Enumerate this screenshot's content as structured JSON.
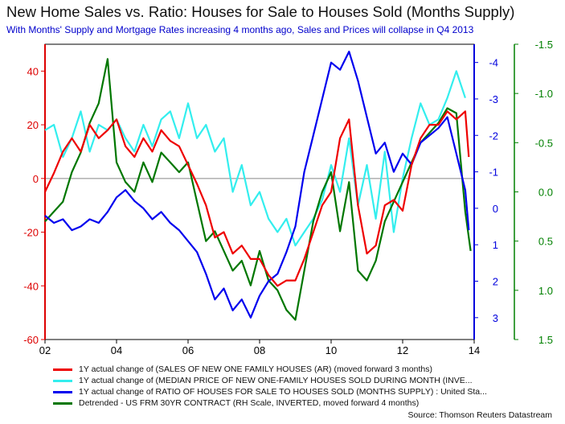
{
  "chart_data": {
    "type": "line",
    "title": "New Home Sales vs. Ratio: Houses for Sale to Houses Sold (Months Supply)",
    "subtitle": "With Months' Supply and Mortgage Rates increasing 4 months ago, Sales and Prices will collapse in Q4 2013",
    "source": "Source: Thomson Reuters Datastream",
    "x_range": [
      2002,
      2014
    ],
    "x_ticks": [
      "02",
      "04",
      "06",
      "08",
      "10",
      "12",
      "14"
    ],
    "x_tick_values": [
      2002,
      2004,
      2006,
      2008,
      2010,
      2012,
      2014
    ],
    "left_axis": {
      "range": [
        -60,
        50
      ],
      "ticks": [
        "40",
        "20",
        "0",
        "-20",
        "-40",
        "-60"
      ],
      "tick_values": [
        40,
        20,
        0,
        -20,
        -40,
        -60
      ],
      "color": "#dd0000"
    },
    "right_axis_1": {
      "range": [
        -4.5,
        3.6
      ],
      "inverted": true,
      "ticks": [
        "-4",
        "-3",
        "-2",
        "-1",
        "0",
        "1",
        "2",
        "3"
      ],
      "tick_values": [
        -4,
        -3,
        -2,
        -1,
        0,
        1,
        2,
        3
      ],
      "color": "#0000dd"
    },
    "right_axis_2": {
      "range": [
        -1.5,
        1.5
      ],
      "inverted": true,
      "ticks": [
        "-1.5",
        "-1.0",
        "-0.5",
        "0.0",
        "0.5",
        "1.0",
        "1.5"
      ],
      "tick_values": [
        -1.5,
        -1.0,
        -0.5,
        0.0,
        0.5,
        1.0,
        1.5
      ],
      "color": "#008000"
    },
    "zero_line": 0,
    "series": [
      {
        "name": "1Y actual change of (SALES OF NEW ONE FAMILY HOUSES (AR) (moved forward 3 months)",
        "color": "#ee0000",
        "axis": "left",
        "x": [
          2002.0,
          2002.25,
          2002.5,
          2002.75,
          2003.0,
          2003.25,
          2003.5,
          2003.75,
          2004.0,
          2004.25,
          2004.5,
          2004.75,
          2005.0,
          2005.25,
          2005.5,
          2005.75,
          2006.0,
          2006.25,
          2006.5,
          2006.75,
          2007.0,
          2007.25,
          2007.5,
          2007.75,
          2008.0,
          2008.25,
          2008.5,
          2008.75,
          2009.0,
          2009.25,
          2009.5,
          2009.75,
          2010.0,
          2010.25,
          2010.5,
          2010.75,
          2011.0,
          2011.25,
          2011.5,
          2011.75,
          2012.0,
          2012.25,
          2012.5,
          2012.75,
          2013.0,
          2013.25,
          2013.5,
          2013.75,
          2013.85
        ],
        "values": [
          -5,
          2,
          10,
          15,
          10,
          20,
          15,
          18,
          22,
          12,
          8,
          15,
          10,
          18,
          14,
          12,
          5,
          -2,
          -10,
          -22,
          -20,
          -28,
          -25,
          -30,
          -30,
          -36,
          -40,
          -38,
          -38,
          -30,
          -20,
          -10,
          -5,
          15,
          22,
          -10,
          -28,
          -25,
          -10,
          -8,
          -12,
          5,
          15,
          20,
          20,
          25,
          22,
          25,
          8
        ]
      },
      {
        "name": "1Y actual change of (MEDIAN PRICE OF NEW ONE-FAMILY HOUSES SOLD DURING MONTH (INVE...",
        "color": "#33eeee",
        "axis": "left",
        "x": [
          2002.0,
          2002.25,
          2002.5,
          2002.75,
          2003.0,
          2003.25,
          2003.5,
          2003.75,
          2004.0,
          2004.25,
          2004.5,
          2004.75,
          2005.0,
          2005.25,
          2005.5,
          2005.75,
          2006.0,
          2006.25,
          2006.5,
          2006.75,
          2007.0,
          2007.25,
          2007.5,
          2007.75,
          2008.0,
          2008.25,
          2008.5,
          2008.75,
          2009.0,
          2009.25,
          2009.5,
          2009.75,
          2010.0,
          2010.25,
          2010.5,
          2010.75,
          2011.0,
          2011.25,
          2011.5,
          2011.75,
          2012.0,
          2012.25,
          2012.5,
          2012.75,
          2013.0,
          2013.25,
          2013.5,
          2013.75
        ],
        "values": [
          18,
          20,
          8,
          15,
          25,
          10,
          20,
          18,
          22,
          15,
          10,
          20,
          12,
          22,
          25,
          15,
          28,
          15,
          20,
          10,
          15,
          -5,
          5,
          -10,
          -5,
          -15,
          -20,
          -15,
          -25,
          -20,
          -15,
          -8,
          5,
          -5,
          15,
          -10,
          5,
          -15,
          10,
          -20,
          0,
          15,
          28,
          20,
          22,
          30,
          40,
          30
        ]
      },
      {
        "name": "1Y actual change of RATIO OF HOUSES FOR SALE TO HOUSES SOLD (MONTHS SUPPLY) : United Sta...",
        "color": "#0000ee",
        "axis": "right_1",
        "x": [
          2002.0,
          2002.25,
          2002.5,
          2002.75,
          2003.0,
          2003.25,
          2003.5,
          2003.75,
          2004.0,
          2004.25,
          2004.5,
          2004.75,
          2005.0,
          2005.25,
          2005.5,
          2005.75,
          2006.0,
          2006.25,
          2006.5,
          2006.75,
          2007.0,
          2007.25,
          2007.5,
          2007.75,
          2008.0,
          2008.25,
          2008.5,
          2008.75,
          2009.0,
          2009.25,
          2009.5,
          2009.75,
          2010.0,
          2010.25,
          2010.5,
          2010.75,
          2011.0,
          2011.25,
          2011.5,
          2011.75,
          2012.0,
          2012.25,
          2012.5,
          2012.75,
          2013.0,
          2013.25,
          2013.5,
          2013.75,
          2013.85
        ],
        "values": [
          0.2,
          0.4,
          0.3,
          0.6,
          0.5,
          0.3,
          0.4,
          0.1,
          -0.3,
          -0.5,
          -0.2,
          0.0,
          0.3,
          0.1,
          0.4,
          0.6,
          0.9,
          1.2,
          1.8,
          2.5,
          2.2,
          2.8,
          2.5,
          3.0,
          2.4,
          2.0,
          1.8,
          1.2,
          0.5,
          -1.0,
          -2.0,
          -3.0,
          -4.0,
          -3.8,
          -4.3,
          -3.5,
          -2.5,
          -1.5,
          -1.8,
          -1.0,
          -1.5,
          -1.2,
          -1.8,
          -2.0,
          -2.2,
          -2.5,
          -1.5,
          -0.5,
          0.6
        ]
      },
      {
        "name": "Detrended - US FRM 30YR CONTRACT (RH Scale, INVERTED, moved forward 4 months)",
        "color": "#007700",
        "axis": "right_2",
        "x": [
          2002.0,
          2002.25,
          2002.5,
          2002.75,
          2003.0,
          2003.25,
          2003.5,
          2003.75,
          2004.0,
          2004.25,
          2004.5,
          2004.75,
          2005.0,
          2005.25,
          2005.5,
          2005.75,
          2006.0,
          2006.25,
          2006.5,
          2006.75,
          2007.0,
          2007.25,
          2007.5,
          2007.75,
          2008.0,
          2008.25,
          2008.5,
          2008.75,
          2009.0,
          2009.25,
          2009.5,
          2009.75,
          2010.0,
          2010.25,
          2010.5,
          2010.75,
          2011.0,
          2011.25,
          2011.5,
          2011.75,
          2012.0,
          2012.25,
          2012.5,
          2012.75,
          2013.0,
          2013.25,
          2013.5,
          2013.75,
          2013.9
        ],
        "values": [
          0.3,
          0.2,
          0.1,
          -0.2,
          -0.4,
          -0.7,
          -0.9,
          -1.35,
          -0.3,
          -0.1,
          0.0,
          -0.3,
          -0.1,
          -0.4,
          -0.3,
          -0.2,
          -0.3,
          0.1,
          0.5,
          0.4,
          0.6,
          0.8,
          0.7,
          0.95,
          0.6,
          0.9,
          1.0,
          1.2,
          1.3,
          0.8,
          0.3,
          0.0,
          -0.2,
          0.4,
          -0.1,
          0.8,
          0.9,
          0.7,
          0.3,
          0.1,
          -0.1,
          -0.3,
          -0.5,
          -0.6,
          -0.7,
          -0.85,
          -0.8,
          0.2,
          0.6
        ]
      }
    ]
  }
}
